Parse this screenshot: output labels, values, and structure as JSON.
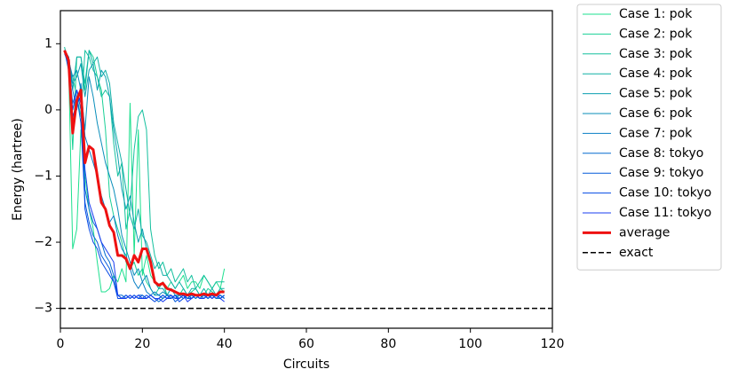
{
  "chart_data": {
    "type": "line",
    "xlabel": "Circuits",
    "ylabel": "Energy (hartree)",
    "xlim": [
      0,
      120
    ],
    "ylim": [
      -3.3,
      1.5
    ],
    "xticks": [
      0,
      20,
      40,
      60,
      80,
      100,
      120
    ],
    "yticks": [
      {
        "value": -3,
        "label": "−3"
      },
      {
        "value": -2,
        "label": "−2"
      },
      {
        "value": -1,
        "label": "−1"
      },
      0,
      1
    ],
    "grid": false,
    "legend": "outside-upper-right",
    "x": [
      1,
      2,
      3,
      4,
      5,
      6,
      7,
      8,
      9,
      10,
      11,
      12,
      13,
      14,
      15,
      16,
      17,
      18,
      19,
      20,
      21,
      22,
      23,
      24,
      25,
      26,
      27,
      28,
      29,
      30,
      31,
      32,
      33,
      34,
      35,
      36,
      37,
      38,
      39,
      40
    ],
    "series": [
      {
        "name": "Case 1: pok",
        "color": "#1ee08f",
        "width": 1,
        "values": [
          0.9,
          0.7,
          -2.1,
          -1.8,
          -0.3,
          -1.0,
          -1.5,
          -1.8,
          -2.3,
          -2.75,
          -2.75,
          -2.7,
          -2.5,
          -2.6,
          -2.4,
          -2.6,
          0.1,
          -2.2,
          -0.3,
          -2.5,
          -2.2,
          -2.5,
          -2.6,
          -2.7,
          -2.6,
          -2.7,
          -2.6,
          -2.7,
          -2.6,
          -2.5,
          -2.7,
          -2.6,
          -2.6,
          -2.7,
          -2.5,
          -2.6,
          -2.7,
          -2.6,
          -2.7,
          -2.4
        ]
      },
      {
        "name": "Case 2: pok",
        "color": "#19d096",
        "width": 1,
        "values": [
          0.9,
          0.8,
          -0.6,
          0.8,
          0.8,
          0.3,
          0.9,
          0.8,
          0.5,
          0.3,
          -0.3,
          -1.3,
          -1.6,
          -1.8,
          -2.0,
          -2.3,
          -2.4,
          -2.3,
          -2.5,
          -2.4,
          -2.6,
          -2.7,
          -2.8,
          -2.7,
          -2.6,
          -2.8,
          -2.7,
          -2.75,
          -2.8,
          -2.7,
          -2.8,
          -2.75,
          -2.7,
          -2.8,
          -2.8,
          -2.7,
          -2.75,
          -2.8,
          -2.7,
          -2.75
        ]
      },
      {
        "name": "Case 3: pok",
        "color": "#14c09e",
        "width": 1,
        "values": [
          0.95,
          0.7,
          0.5,
          0.2,
          -0.1,
          0.9,
          0.8,
          0.6,
          0.5,
          0.2,
          0.3,
          0.2,
          -0.5,
          -1.0,
          -0.8,
          -1.8,
          -1.5,
          -0.6,
          -0.1,
          0.0,
          -0.3,
          -1.8,
          -2.2,
          -2.4,
          -2.3,
          -2.5,
          -2.4,
          -2.6,
          -2.5,
          -2.4,
          -2.6,
          -2.5,
          -2.7,
          -2.6,
          -2.5,
          -2.6,
          -2.7,
          -2.6,
          -2.6,
          -2.6
        ]
      },
      {
        "name": "Case 4: pok",
        "color": "#10b0a6",
        "width": 1,
        "values": [
          0.9,
          0.8,
          0.3,
          0.8,
          0.8,
          0.4,
          0.9,
          0.7,
          0.8,
          0.5,
          0.6,
          0.4,
          -0.2,
          -0.5,
          -0.8,
          -1.2,
          -1.6,
          -1.8,
          -1.5,
          -1.9,
          -2.0,
          -2.2,
          -2.4,
          -2.3,
          -2.5,
          -2.5,
          -2.6,
          -2.7,
          -2.6,
          -2.7,
          -2.8,
          -2.7,
          -2.7,
          -2.8,
          -2.7,
          -2.8,
          -2.7,
          -2.8,
          -2.7,
          -2.7
        ]
      },
      {
        "name": "Case 5: pok",
        "color": "#0c9fb0",
        "width": 1,
        "values": [
          0.9,
          0.8,
          0.4,
          0.5,
          0.7,
          0.2,
          0.6,
          0.7,
          0.3,
          0.6,
          0.5,
          0.2,
          -0.3,
          -0.7,
          -1.2,
          -1.5,
          -1.3,
          -1.7,
          -2.0,
          -1.8,
          -2.1,
          -2.3,
          -2.6,
          -2.7,
          -2.7,
          -2.8,
          -2.7,
          -2.8,
          -2.8,
          -2.8,
          -2.85,
          -2.8,
          -2.85,
          -2.8,
          -2.8,
          -2.85,
          -2.8,
          -2.8,
          -2.85,
          -2.8
        ]
      },
      {
        "name": "Case 6: pok",
        "color": "#098eba",
        "width": 1,
        "values": [
          0.9,
          0.75,
          0.5,
          0.6,
          0.3,
          -0.3,
          0.5,
          0.2,
          -0.2,
          -0.5,
          -0.8,
          -1.0,
          -1.2,
          -1.5,
          -1.9,
          -2.1,
          -2.3,
          -2.5,
          -2.4,
          -2.6,
          -2.5,
          -2.7,
          -2.8,
          -2.8,
          -2.75,
          -2.8,
          -2.85,
          -2.8,
          -2.85,
          -2.8,
          -2.85,
          -2.85,
          -2.8,
          -2.85,
          -2.8,
          -2.85,
          -2.8,
          -2.85,
          -2.85,
          -2.8
        ]
      },
      {
        "name": "Case 7: pok",
        "color": "#077ec4",
        "width": 1,
        "values": [
          0.9,
          0.8,
          0.3,
          0.0,
          0.4,
          -0.4,
          -0.6,
          -0.8,
          -1.0,
          -1.3,
          -1.5,
          -1.7,
          -1.6,
          -1.9,
          -2.1,
          -2.2,
          -2.4,
          -2.6,
          -2.7,
          -2.6,
          -2.75,
          -2.8,
          -2.75,
          -2.8,
          -2.85,
          -2.8,
          -2.8,
          -2.85,
          -2.8,
          -2.85,
          -2.8,
          -2.85,
          -2.8,
          -2.8,
          -2.85,
          -2.8,
          -2.85,
          -2.8,
          -2.8,
          -2.85
        ]
      },
      {
        "name": "Case 8: tokyo",
        "color": "#056ccf",
        "width": 1,
        "values": [
          0.9,
          0.7,
          0.1,
          0.3,
          0.0,
          -1.2,
          -1.5,
          -1.7,
          -1.8,
          -2.0,
          -2.2,
          -2.3,
          -2.5,
          -2.8,
          -2.8,
          -2.85,
          -2.8,
          -2.85,
          -2.8,
          -2.8,
          -2.85,
          -2.8,
          -2.85,
          -2.9,
          -2.85,
          -2.8,
          -2.85,
          -2.8,
          -2.85,
          -2.8,
          -2.85,
          -2.8,
          -2.85,
          -2.8,
          -2.8,
          -2.85,
          -2.8,
          -2.85,
          -2.8,
          -2.85
        ]
      },
      {
        "name": "Case 9: tokyo",
        "color": "#045ada",
        "width": 1,
        "values": [
          0.9,
          0.6,
          -0.2,
          0.2,
          -0.2,
          -1.4,
          -1.7,
          -1.9,
          -2.0,
          -2.2,
          -2.3,
          -2.4,
          -2.6,
          -2.8,
          -2.85,
          -2.8,
          -2.85,
          -2.8,
          -2.85,
          -2.8,
          -2.85,
          -2.8,
          -2.85,
          -2.85,
          -2.8,
          -2.85,
          -2.8,
          -2.9,
          -2.85,
          -2.8,
          -2.85,
          -2.85,
          -2.8,
          -2.85,
          -2.8,
          -2.85,
          -2.8,
          -2.85,
          -2.8,
          -2.85
        ]
      },
      {
        "name": "Case 10: tokyo",
        "color": "#0348e5",
        "width": 1,
        "values": [
          0.85,
          0.7,
          -0.1,
          0.1,
          0.2,
          -1.5,
          -1.8,
          -2.0,
          -2.1,
          -2.3,
          -2.4,
          -2.5,
          -2.6,
          -2.85,
          -2.85,
          -2.8,
          -2.85,
          -2.8,
          -2.85,
          -2.85,
          -2.8,
          -2.85,
          -2.9,
          -2.85,
          -2.8,
          -2.85,
          -2.85,
          -2.8,
          -2.9,
          -2.85,
          -2.8,
          -2.85,
          -2.8,
          -2.85,
          -2.85,
          -2.8,
          -2.85,
          -2.8,
          -2.85,
          -2.8
        ]
      },
      {
        "name": "Case 11: tokyo",
        "color": "#1a3cf0",
        "width": 1,
        "values": [
          0.9,
          0.7,
          0.0,
          0.3,
          0.1,
          -0.9,
          -1.4,
          -1.6,
          -1.8,
          -2.0,
          -2.1,
          -2.2,
          -2.3,
          -2.8,
          -2.85,
          -2.85,
          -2.8,
          -2.85,
          -2.8,
          -2.85,
          -2.85,
          -2.8,
          -2.85,
          -2.85,
          -2.9,
          -2.85,
          -2.8,
          -2.85,
          -2.85,
          -2.8,
          -2.9,
          -2.85,
          -2.8,
          -2.85,
          -2.85,
          -2.8,
          -2.85,
          -2.8,
          -2.85,
          -2.9
        ]
      },
      {
        "name": "average",
        "color": "#ee1111",
        "width": 3,
        "values": [
          0.9,
          0.75,
          -0.35,
          0.15,
          0.3,
          -0.8,
          -0.55,
          -0.6,
          -1.0,
          -1.4,
          -1.5,
          -1.75,
          -1.85,
          -2.2,
          -2.2,
          -2.25,
          -2.4,
          -2.2,
          -2.3,
          -2.1,
          -2.1,
          -2.3,
          -2.6,
          -2.65,
          -2.62,
          -2.7,
          -2.72,
          -2.75,
          -2.78,
          -2.78,
          -2.8,
          -2.78,
          -2.8,
          -2.8,
          -2.78,
          -2.8,
          -2.78,
          -2.8,
          -2.75,
          -2.75
        ]
      }
    ],
    "hlines": [
      {
        "name": "exact",
        "y": -3,
        "color": "#000000",
        "dashed": true
      }
    ]
  }
}
